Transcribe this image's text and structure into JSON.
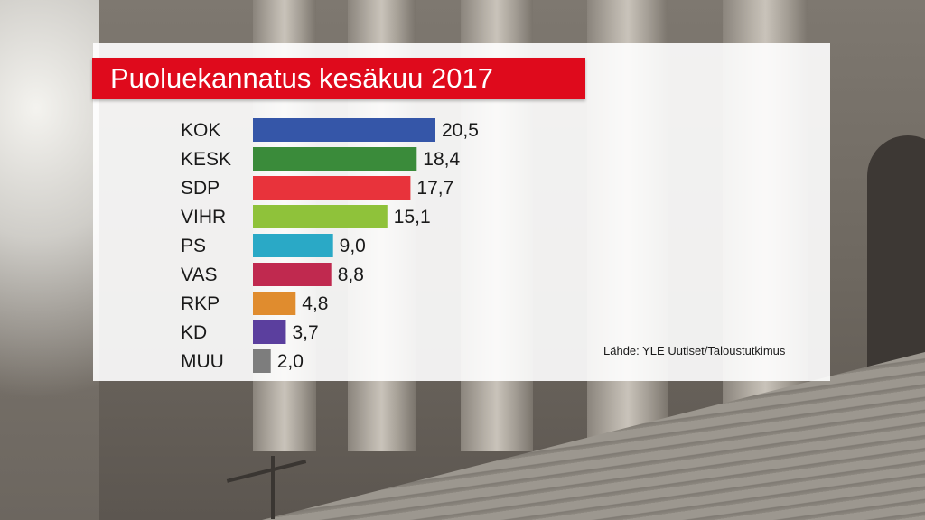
{
  "title": "Puoluekannatus kesäkuu 2017",
  "source": "Lähde: YLE Uutiset/Taloustutkimus",
  "chart_data": {
    "type": "bar",
    "orientation": "horizontal",
    "title": "Puoluekannatus kesäkuu 2017",
    "xlabel": "",
    "ylabel": "",
    "grid": false,
    "xlim": [
      0,
      20.5
    ],
    "categories": [
      "KOK",
      "KESK",
      "SDP",
      "VIHR",
      "PS",
      "VAS",
      "RKP",
      "KD",
      "MUU"
    ],
    "values": [
      20.5,
      18.4,
      17.7,
      15.1,
      9.0,
      8.8,
      4.8,
      3.7,
      2.0
    ],
    "value_labels": [
      "20,5",
      "18,4",
      "17,7",
      "15,1",
      "9,0",
      "8,8",
      "4,8",
      "3,7",
      "2,0"
    ],
    "colors": [
      "#3556a8",
      "#3a8b3a",
      "#e8333b",
      "#8fc23a",
      "#2aa9c6",
      "#c0294f",
      "#e08c2e",
      "#5b3f9e",
      "#7d7d7d"
    ]
  }
}
